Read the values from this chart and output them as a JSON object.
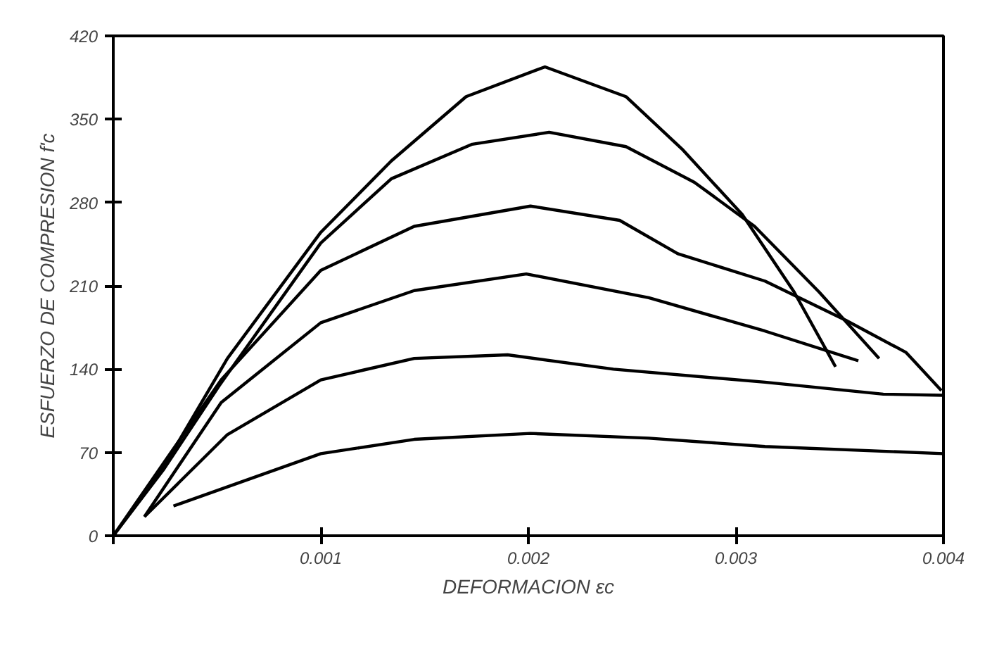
{
  "chart_data": {
    "type": "line",
    "xlabel": "DEFORMACION εc",
    "ylabel": "ESFUERZO DE COMPRESION f'c",
    "xlim": [
      0,
      0.004
    ],
    "ylim": [
      0,
      420
    ],
    "xticks": [
      {
        "value": 0,
        "label": null
      },
      {
        "value": 0.001,
        "label": "0.001"
      },
      {
        "value": 0.002,
        "label": "0.002"
      },
      {
        "value": 0.003,
        "label": "0.003"
      },
      {
        "value": 0.004,
        "label": "0.004"
      }
    ],
    "yticks": [
      0,
      70,
      140,
      210,
      280,
      350,
      420
    ],
    "grid": false,
    "marker": "none",
    "line_style": "solid",
    "series": [
      {
        "color": "#000000",
        "x": [
          0,
          0.00024,
          0.00055,
          0.001,
          0.00134,
          0.0017,
          0.00208,
          0.00247,
          0.00274,
          0.00303,
          0.00328,
          0.00348
        ],
        "values": [
          0,
          57,
          149,
          255,
          315,
          369,
          394,
          369,
          325,
          270,
          205,
          142
        ]
      },
      {
        "color": "#000000",
        "x": [
          0,
          0.00024,
          0.00051,
          0.001,
          0.00134,
          0.00173,
          0.0021,
          0.00247,
          0.0028,
          0.00309,
          0.0034,
          0.00369
        ],
        "values": [
          0,
          55,
          126,
          246,
          300,
          329,
          339,
          327,
          297,
          260,
          205,
          149
        ]
      },
      {
        "color": "#000000",
        "x": [
          0,
          0.00052,
          0.001,
          0.00145,
          0.00201,
          0.00244,
          0.00272,
          0.00314,
          0.00353,
          0.00382,
          0.00399
        ],
        "values": [
          0,
          131,
          223,
          260,
          277,
          265,
          237,
          214,
          181,
          154,
          122
        ]
      },
      {
        "color": "#000000",
        "x": [
          0.00015,
          0.00052,
          0.001,
          0.00145,
          0.00199,
          0.00258,
          0.00314,
          0.00359
        ],
        "values": [
          16,
          112,
          179,
          206,
          220,
          200,
          172,
          147
        ]
      },
      {
        "color": "#000000",
        "x": [
          0.00015,
          0.00055,
          0.001,
          0.00145,
          0.0019,
          0.00241,
          0.00314,
          0.00371,
          0.004
        ],
        "values": [
          16,
          85,
          131,
          149,
          152,
          140,
          129,
          119,
          118
        ]
      },
      {
        "color": "#000000",
        "x": [
          0.00029,
          0.001,
          0.00145,
          0.00201,
          0.00258,
          0.00314,
          0.004
        ],
        "values": [
          25,
          69,
          81,
          86,
          82,
          75,
          69
        ]
      }
    ]
  }
}
